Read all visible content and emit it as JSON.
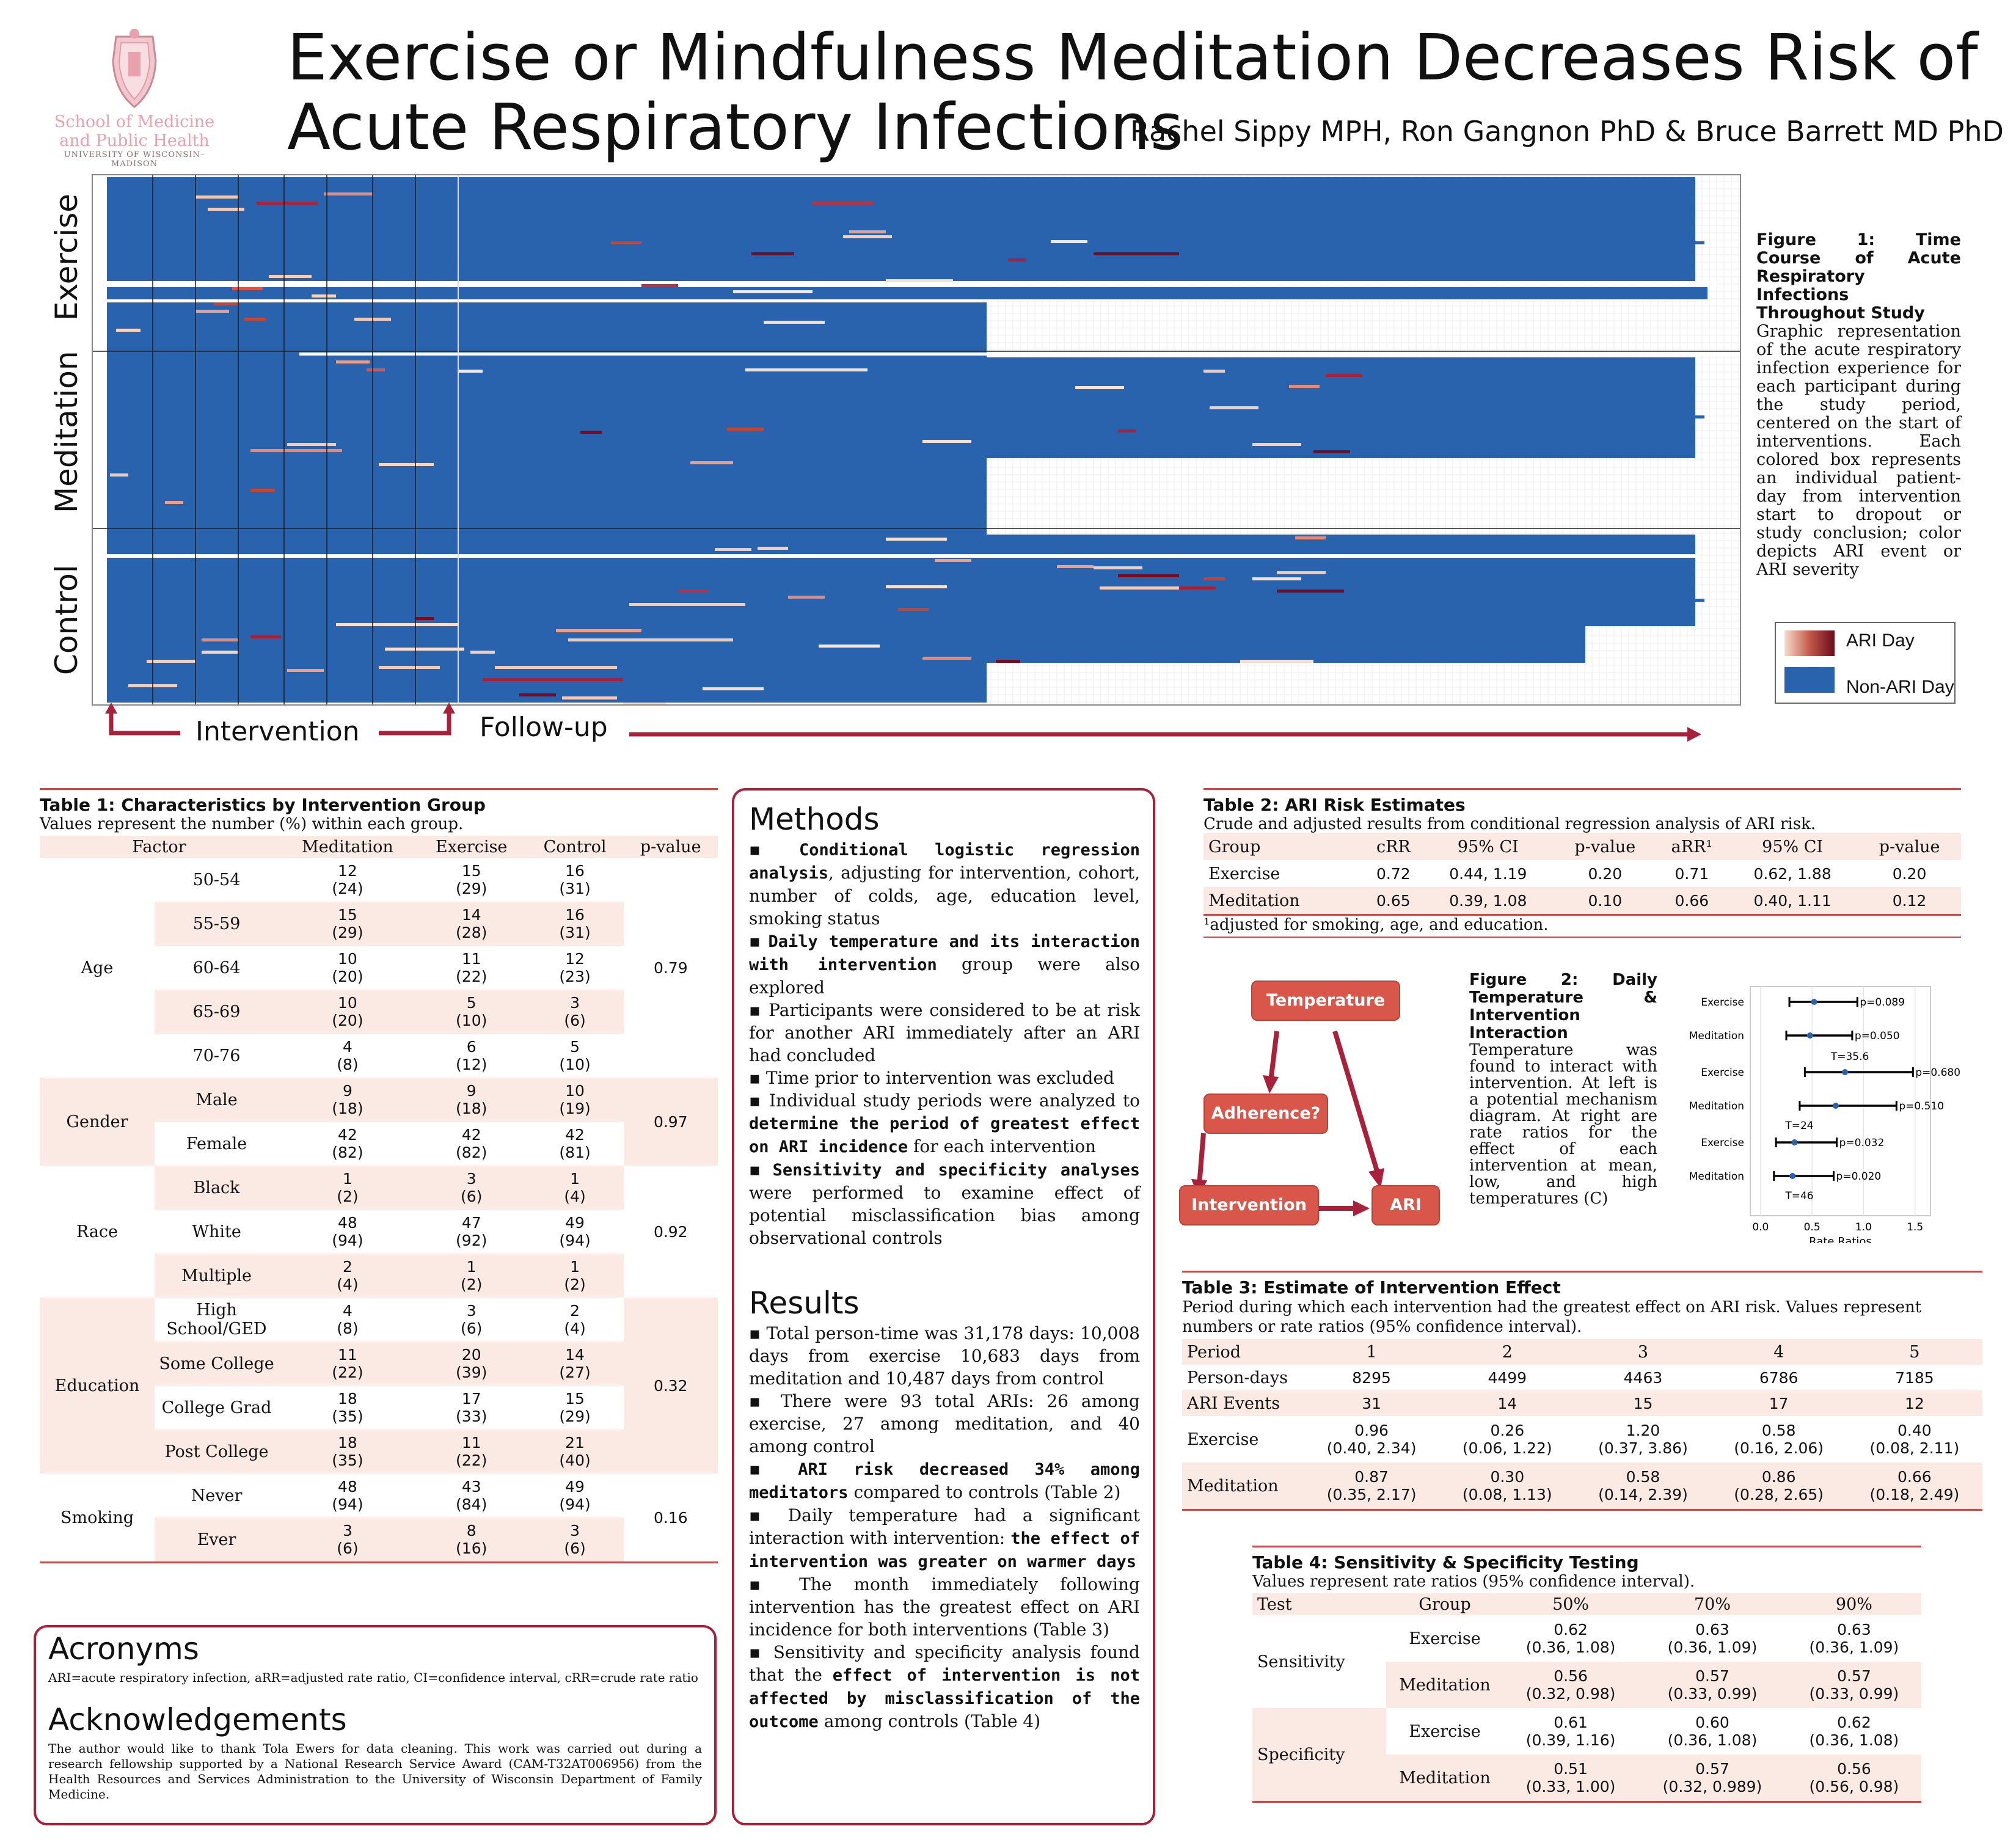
{
  "header": {
    "title_line1": "Exercise or Mindfulness Meditation Decreases Risk of",
    "title_line2": "Acute Respiratory Infections",
    "authors": "Rachel Sippy MPH, Ron Gangnon PhD & Bruce Barrett MD PhD",
    "logo_line1": "School of Medicine",
    "logo_line2": "and Public Health",
    "logo_line3": "UNIVERSITY OF WISCONSIN–MADISON"
  },
  "figure1": {
    "groups": [
      "Exercise",
      "Meditation",
      "Control"
    ],
    "intervention_label": "Intervention",
    "followup_label": "Follow-up",
    "caption_title": "Figure 1: Time Course of Acute Respiratory Infections Throughout Study",
    "caption_body": "Graphic representation of the acute respiratory infection experience for each participant during the study period, centered on the start of interventions. Each colored box represents an individual patient-day from intervention start to dropout or study conclusion; color depicts ARI event or ARI severity",
    "legend": [
      "ARI Day",
      "Non-ARI Day"
    ],
    "colors": {
      "non_ari": "#2a63ad",
      "ari_light": "#f6d6c2",
      "ari_dark": "#7a0b1f",
      "arrow": "#a8213a"
    }
  },
  "table1": {
    "title": "Table 1: Characteristics by Intervention Group",
    "subtitle": "Values represent the number (%) within each group.",
    "headers": [
      "Factor",
      "Meditation",
      "Exercise",
      "Control",
      "p-value"
    ],
    "groups": [
      {
        "factor": "Age",
        "p": "0.79",
        "rows": [
          {
            "level": "50-54",
            "med": [
              "12",
              "(24)"
            ],
            "ex": [
              "15",
              "(29)"
            ],
            "ctl": [
              "16",
              "(31)"
            ]
          },
          {
            "level": "55-59",
            "med": [
              "15",
              "(29)"
            ],
            "ex": [
              "14",
              "(28)"
            ],
            "ctl": [
              "16",
              "(31)"
            ]
          },
          {
            "level": "60-64",
            "med": [
              "10",
              "(20)"
            ],
            "ex": [
              "11",
              "(22)"
            ],
            "ctl": [
              "12",
              "(23)"
            ]
          },
          {
            "level": "65-69",
            "med": [
              "10",
              "(20)"
            ],
            "ex": [
              "5",
              "(10)"
            ],
            "ctl": [
              "3",
              "(6)"
            ]
          },
          {
            "level": "70-76",
            "med": [
              "4",
              "(8)"
            ],
            "ex": [
              "6",
              "(12)"
            ],
            "ctl": [
              "5",
              "(10)"
            ]
          }
        ]
      },
      {
        "factor": "Gender",
        "p": "0.97",
        "rows": [
          {
            "level": "Male",
            "med": [
              "9",
              "(18)"
            ],
            "ex": [
              "9",
              "(18)"
            ],
            "ctl": [
              "10",
              "(19)"
            ]
          },
          {
            "level": "Female",
            "med": [
              "42",
              "(82)"
            ],
            "ex": [
              "42",
              "(82)"
            ],
            "ctl": [
              "42",
              "(81)"
            ]
          }
        ]
      },
      {
        "factor": "Race",
        "p": "0.92",
        "rows": [
          {
            "level": "Black",
            "med": [
              "1",
              "(2)"
            ],
            "ex": [
              "3",
              "(6)"
            ],
            "ctl": [
              "1",
              "(4)"
            ]
          },
          {
            "level": "White",
            "med": [
              "48",
              "(94)"
            ],
            "ex": [
              "47",
              "(92)"
            ],
            "ctl": [
              "49",
              "(94)"
            ]
          },
          {
            "level": "Multiple",
            "med": [
              "2",
              "(4)"
            ],
            "ex": [
              "1",
              "(2)"
            ],
            "ctl": [
              "1",
              "(2)"
            ]
          }
        ]
      },
      {
        "factor": "Education",
        "p": "0.32",
        "rows": [
          {
            "level": "High School/GED",
            "med": [
              "4",
              "(8)"
            ],
            "ex": [
              "3",
              "(6)"
            ],
            "ctl": [
              "2",
              "(4)"
            ]
          },
          {
            "level": "Some College",
            "med": [
              "11",
              "(22)"
            ],
            "ex": [
              "20",
              "(39)"
            ],
            "ctl": [
              "14",
              "(27)"
            ]
          },
          {
            "level": "College Grad",
            "med": [
              "18",
              "(35)"
            ],
            "ex": [
              "17",
              "(33)"
            ],
            "ctl": [
              "15",
              "(29)"
            ]
          },
          {
            "level": "Post College",
            "med": [
              "18",
              "(35)"
            ],
            "ex": [
              "11",
              "(22)"
            ],
            "ctl": [
              "21",
              "(40)"
            ]
          }
        ]
      },
      {
        "factor": "Smoking",
        "p": "0.16",
        "rows": [
          {
            "level": "Never",
            "med": [
              "48",
              "(94)"
            ],
            "ex": [
              "43",
              "(84)"
            ],
            "ctl": [
              "49",
              "(94)"
            ]
          },
          {
            "level": "Ever",
            "med": [
              "3",
              "(6)"
            ],
            "ex": [
              "8",
              "(16)"
            ],
            "ctl": [
              "3",
              "(6)"
            ]
          }
        ]
      }
    ]
  },
  "acronyms": {
    "heading": "Acronyms",
    "text": "ARI=acute respiratory infection, aRR=adjusted rate ratio, CI=confidence interval, cRR=crude rate ratio"
  },
  "acknowledgements": {
    "heading": "Acknowledgements",
    "text": "The author would like to thank Tola Ewers for data cleaning. This work was carried out during a research fellowship supported by a National Research Service Award (CAM-T32AT006956) from the Health Resources and Services Administration to the University of Wisconsin Department of Family Medicine."
  },
  "methods": {
    "heading": "Methods",
    "items": [
      {
        "bold": "Conditional logistic regression analysis",
        "rest": ", adjusting for intervention, cohort, number of colds, age, education level, smoking status"
      },
      {
        "bold": "Daily temperature and its interaction with intervention",
        "rest": " group were also explored"
      },
      {
        "bold": "",
        "rest": "Participants were considered to be at risk for another ARI immediately after an ARI had concluded"
      },
      {
        "bold": "",
        "rest": "Time prior to intervention was excluded"
      },
      {
        "pre": "Individual study periods were analyzed to ",
        "bold": "determine the period of greatest effect on ARI incidence",
        "rest": " for each intervention"
      },
      {
        "bold": "Sensitivity and specificity analyses",
        "rest": " were performed to examine effect of potential misclassification bias among observational controls"
      }
    ]
  },
  "results": {
    "heading": "Results",
    "items": [
      {
        "pre": "Total person-time was 31,178 days: 10,008 days from exercise 10,683 days from meditation and 10,487 days from control",
        "bold": "",
        "rest": ""
      },
      {
        "pre": "There were 93 total ARIs: 26 among exercise, 27 among meditation, and 40 among control",
        "bold": "",
        "rest": ""
      },
      {
        "pre": "",
        "bold": "ARI risk decreased 34% among meditators",
        "rest": " compared to controls (Table 2)"
      },
      {
        "pre": "Daily temperature had a significant interaction with intervention: ",
        "bold": "the effect of intervention was greater on warmer days",
        "rest": ""
      },
      {
        "pre": "The month immediately following intervention has the greatest effect on ARI incidence for both interventions (Table 3)",
        "bold": "",
        "rest": ""
      },
      {
        "pre": "Sensitivity and specificity analysis found that the ",
        "bold": "effect of intervention is not affected by misclassification of the outcome",
        "rest": " among controls (Table 4)"
      }
    ]
  },
  "table2": {
    "title": "Table 2: ARI Risk Estimates",
    "subtitle": "Crude and adjusted results from conditional regression analysis of ARI risk.",
    "headers": [
      "Group",
      "cRR",
      "95% CI",
      "p-value",
      "aRR¹",
      "95% CI",
      "p-value"
    ],
    "rows": [
      [
        "Exercise",
        "0.72",
        "0.44, 1.19",
        "0.20",
        "0.71",
        "0.62, 1.88",
        "0.20"
      ],
      [
        "Meditation",
        "0.65",
        "0.39, 1.08",
        "0.10",
        "0.66",
        "0.40, 1.11",
        "0.12"
      ]
    ],
    "footnote": "¹adjusted for smoking, age, and education."
  },
  "figure2": {
    "nodes": [
      "Temperature",
      "Adherence?",
      "Intervention",
      "ARI"
    ],
    "caption_title": "Figure 2: Daily Temperature & Intervention Interaction",
    "caption_body": "Temperature was found to interact with intervention. At left is a potential mechanism diagram. At right are rate ratios for the effect of each intervention at mean, low, and high temperatures (C)"
  },
  "chart_data": {
    "type": "scatter",
    "title": "",
    "xlabel": "Rate Ratios",
    "ylabel": "",
    "xlim": [
      -0.1,
      1.65
    ],
    "xticks": [
      "0.0",
      "0.5",
      "1.0",
      "1.5"
    ],
    "xtick_values": [
      0,
      0.5,
      1.0,
      1.5
    ],
    "panels": [
      {
        "label": "",
        "rows": [
          {
            "group": "Exercise",
            "est": 0.52,
            "lo": 0.28,
            "hi": 0.94,
            "p": "p=0.089"
          },
          {
            "group": "Meditation",
            "est": 0.48,
            "lo": 0.25,
            "hi": 0.89,
            "p": "p=0.050"
          }
        ]
      },
      {
        "label": "T=35.6",
        "rows": [
          {
            "group": "Exercise",
            "est": 0.82,
            "lo": 0.43,
            "hi": 1.48,
            "p": "p=0.680"
          },
          {
            "group": "Meditation",
            "est": 0.73,
            "lo": 0.38,
            "hi": 1.32,
            "p": "p=0.510"
          }
        ]
      },
      {
        "label": "T=24",
        "rows": [
          {
            "group": "Exercise",
            "est": 0.33,
            "lo": 0.15,
            "hi": 0.74,
            "p": "p=0.032"
          },
          {
            "group": "Meditation",
            "est": 0.31,
            "lo": 0.13,
            "hi": 0.71,
            "p": "p=0.020"
          }
        ]
      }
    ],
    "bottom_label": "T=46"
  },
  "table3": {
    "title": "Table 3: Estimate of Intervention Effect",
    "subtitle": "Period during which each intervention had the greatest effect on ARI risk. Values represent numbers or rate ratios (95% confidence interval).",
    "rows": [
      {
        "label": "Period",
        "vals": [
          [
            "1"
          ],
          [
            "2"
          ],
          [
            "3"
          ],
          [
            "4"
          ],
          [
            "5"
          ]
        ],
        "pink": true,
        "serif": true
      },
      {
        "label": "Person-days",
        "vals": [
          [
            "8295"
          ],
          [
            "4499"
          ],
          [
            "4463"
          ],
          [
            "6786"
          ],
          [
            "7185"
          ]
        ],
        "pink": false
      },
      {
        "label": "ARI Events",
        "vals": [
          [
            "31"
          ],
          [
            "14"
          ],
          [
            "15"
          ],
          [
            "17"
          ],
          [
            "12"
          ]
        ],
        "pink": true
      },
      {
        "label": "Exercise",
        "vals": [
          [
            "0.96",
            "(0.40, 2.34)"
          ],
          [
            "0.26",
            "(0.06, 1.22)"
          ],
          [
            "1.20",
            "(0.37, 3.86)"
          ],
          [
            "0.58",
            "(0.16, 2.06)"
          ],
          [
            "0.40",
            "(0.08, 2.11)"
          ]
        ],
        "pink": false
      },
      {
        "label": "Meditation",
        "vals": [
          [
            "0.87",
            "(0.35, 2.17)"
          ],
          [
            "0.30",
            "(0.08, 1.13)"
          ],
          [
            "0.58",
            "(0.14, 2.39)"
          ],
          [
            "0.86",
            "(0.28, 2.65)"
          ],
          [
            "0.66",
            "(0.18, 2.49)"
          ]
        ],
        "pink": true
      }
    ]
  },
  "table4": {
    "title": "Table 4: Sensitivity & Specificity Testing",
    "subtitle": "Values represent rate ratios (95% confidence interval).",
    "headers": [
      "Test",
      "Group",
      "50%",
      "70%",
      "90%"
    ],
    "sections": [
      {
        "test": "Sensitivity",
        "rows": [
          {
            "group": "Exercise",
            "vals": [
              [
                "0.62",
                "(0.36, 1.08)"
              ],
              [
                "0.63",
                "(0.36, 1.09)"
              ],
              [
                "0.63",
                "(0.36, 1.09)"
              ]
            ]
          },
          {
            "group": "Meditation",
            "vals": [
              [
                "0.56",
                "(0.32, 0.98)"
              ],
              [
                "0.57",
                "(0.33, 0.99)"
              ],
              [
                "0.57",
                "(0.33, 0.99)"
              ]
            ]
          }
        ]
      },
      {
        "test": "Specificity",
        "rows": [
          {
            "group": "Exercise",
            "vals": [
              [
                "0.61",
                "(0.39, 1.16)"
              ],
              [
                "0.60",
                "(0.36, 1.08)"
              ],
              [
                "0.62",
                "(0.36, 1.08)"
              ]
            ]
          },
          {
            "group": "Meditation",
            "vals": [
              [
                "0.51",
                "(0.33, 1.00)"
              ],
              [
                "0.57",
                "(0.32, 0.989)"
              ],
              [
                "0.56",
                "(0.56, 0.98)"
              ]
            ]
          }
        ]
      }
    ]
  }
}
